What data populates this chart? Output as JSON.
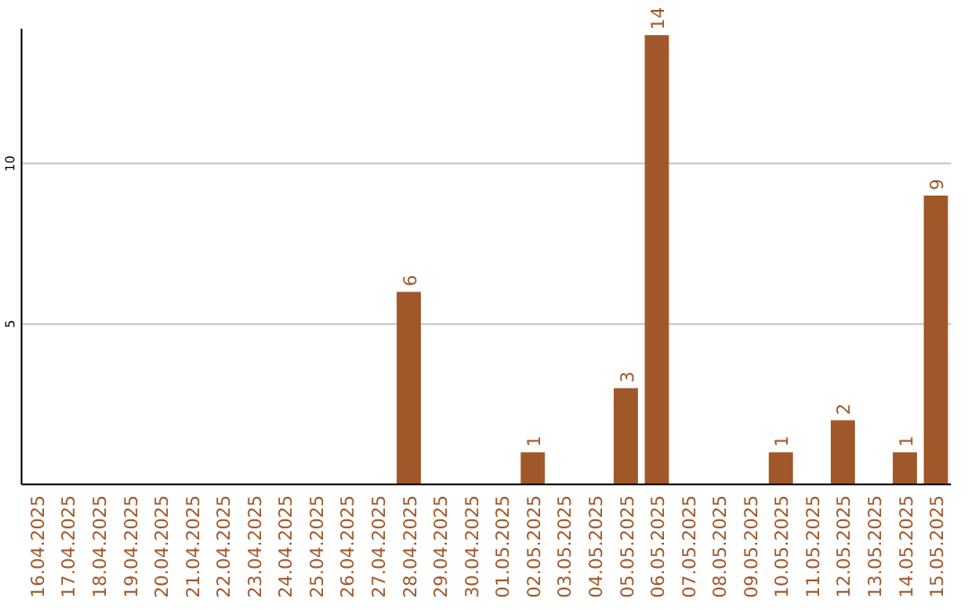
{
  "chart_data": {
    "type": "bar",
    "categories": [
      "16.04.2025",
      "17.04.2025",
      "18.04.2025",
      "19.04.2025",
      "20.04.2025",
      "21.04.2025",
      "22.04.2025",
      "23.04.2025",
      "24.04.2025",
      "25.04.2025",
      "26.04.2025",
      "27.04.2025",
      "28.04.2025",
      "29.04.2025",
      "30.04.2025",
      "01.05.2025",
      "02.05.2025",
      "03.05.2025",
      "04.05.2025",
      "05.05.2025",
      "06.05.2025",
      "07.05.2025",
      "08.05.2025",
      "09.05.2025",
      "10.05.2025",
      "11.05.2025",
      "12.05.2025",
      "13.05.2025",
      "14.05.2025",
      "15.05.2025"
    ],
    "values": [
      0,
      0,
      0,
      0,
      0,
      0,
      0,
      0,
      0,
      0,
      0,
      0,
      6,
      0,
      0,
      0,
      1,
      0,
      0,
      3,
      14,
      0,
      0,
      0,
      1,
      0,
      2,
      0,
      1,
      9
    ],
    "value_labels": [
      null,
      null,
      null,
      null,
      null,
      null,
      null,
      null,
      null,
      null,
      null,
      null,
      "6",
      null,
      null,
      null,
      "1",
      null,
      null,
      "3",
      "14",
      null,
      null,
      null,
      "1",
      null,
      "2",
      null,
      "1",
      "9"
    ],
    "color": "#a0582a",
    "ylim": [
      0,
      14.2
    ],
    "yticks": [
      5,
      10
    ],
    "grid": "y"
  }
}
